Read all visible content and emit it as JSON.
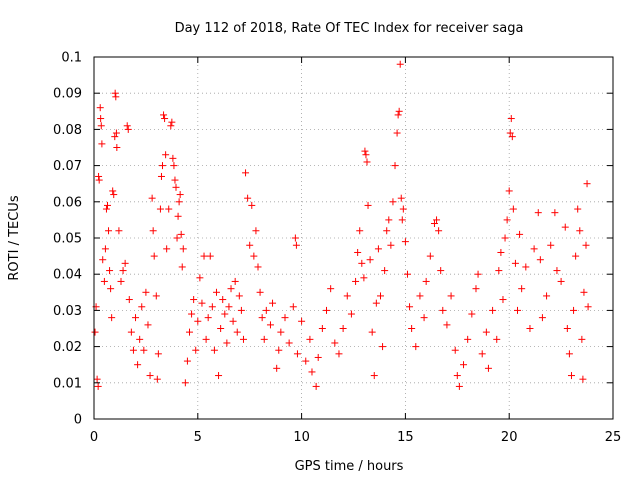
{
  "chart_data": {
    "type": "scatter",
    "title": "Day 112 of 2018, Rate Of TEC Index for receiver saga",
    "xlabel": "GPS time / hours",
    "ylabel": "ROTI / TECUs",
    "xlim": [
      0,
      25
    ],
    "ylim": [
      0,
      0.1
    ],
    "x_ticks": [
      "0",
      "5",
      "10",
      "15",
      "20",
      "25"
    ],
    "y_ticks": [
      "0",
      "0.01",
      "0.02",
      "0.03",
      "0.04",
      "0.05",
      "0.06",
      "0.07",
      "0.08",
      "0.09",
      "0.1"
    ],
    "grid": true,
    "marker": "+",
    "series": [
      {
        "color": "#ff0000",
        "points": [
          [
            0.05,
            0.024
          ],
          [
            0.1,
            0.031
          ],
          [
            0.15,
            0.011
          ],
          [
            0.2,
            0.009
          ],
          [
            0.22,
            0.067
          ],
          [
            0.25,
            0.066
          ],
          [
            0.3,
            0.086
          ],
          [
            0.32,
            0.083
          ],
          [
            0.35,
            0.081
          ],
          [
            0.38,
            0.076
          ],
          [
            0.42,
            0.044
          ],
          [
            0.5,
            0.038
          ],
          [
            0.55,
            0.047
          ],
          [
            0.6,
            0.058
          ],
          [
            0.65,
            0.059
          ],
          [
            0.7,
            0.052
          ],
          [
            0.75,
            0.041
          ],
          [
            0.8,
            0.036
          ],
          [
            0.85,
            0.028
          ],
          [
            0.9,
            0.063
          ],
          [
            0.95,
            0.062
          ],
          [
            1.0,
            0.078
          ],
          [
            1.02,
            0.09
          ],
          [
            1.05,
            0.089
          ],
          [
            1.08,
            0.079
          ],
          [
            1.1,
            0.075
          ],
          [
            1.2,
            0.052
          ],
          [
            1.3,
            0.038
          ],
          [
            1.4,
            0.041
          ],
          [
            1.5,
            0.043
          ],
          [
            1.6,
            0.081
          ],
          [
            1.65,
            0.08
          ],
          [
            1.7,
            0.033
          ],
          [
            1.8,
            0.024
          ],
          [
            1.9,
            0.019
          ],
          [
            2.0,
            0.028
          ],
          [
            2.1,
            0.015
          ],
          [
            2.2,
            0.022
          ],
          [
            2.3,
            0.031
          ],
          [
            2.4,
            0.019
          ],
          [
            2.5,
            0.035
          ],
          [
            2.6,
            0.026
          ],
          [
            2.7,
            0.012
          ],
          [
            2.8,
            0.061
          ],
          [
            2.85,
            0.052
          ],
          [
            2.9,
            0.045
          ],
          [
            3.0,
            0.034
          ],
          [
            3.05,
            0.011
          ],
          [
            3.1,
            0.018
          ],
          [
            3.2,
            0.058
          ],
          [
            3.25,
            0.067
          ],
          [
            3.3,
            0.07
          ],
          [
            3.35,
            0.084
          ],
          [
            3.4,
            0.083
          ],
          [
            3.45,
            0.073
          ],
          [
            3.5,
            0.047
          ],
          [
            3.6,
            0.058
          ],
          [
            3.7,
            0.081
          ],
          [
            3.75,
            0.082
          ],
          [
            3.8,
            0.072
          ],
          [
            3.85,
            0.07
          ],
          [
            3.9,
            0.066
          ],
          [
            3.95,
            0.064
          ],
          [
            4.0,
            0.05
          ],
          [
            4.05,
            0.056
          ],
          [
            4.1,
            0.06
          ],
          [
            4.15,
            0.062
          ],
          [
            4.2,
            0.051
          ],
          [
            4.25,
            0.042
          ],
          [
            4.3,
            0.047
          ],
          [
            4.4,
            0.01
          ],
          [
            4.5,
            0.016
          ],
          [
            4.6,
            0.024
          ],
          [
            4.7,
            0.029
          ],
          [
            4.8,
            0.033
          ],
          [
            4.9,
            0.019
          ],
          [
            5.0,
            0.027
          ],
          [
            5.1,
            0.039
          ],
          [
            5.2,
            0.032
          ],
          [
            5.3,
            0.045
          ],
          [
            5.4,
            0.022
          ],
          [
            5.5,
            0.028
          ],
          [
            5.6,
            0.045
          ],
          [
            5.7,
            0.031
          ],
          [
            5.8,
            0.019
          ],
          [
            5.9,
            0.035
          ],
          [
            6.0,
            0.012
          ],
          [
            6.1,
            0.025
          ],
          [
            6.2,
            0.033
          ],
          [
            6.3,
            0.029
          ],
          [
            6.4,
            0.021
          ],
          [
            6.5,
            0.031
          ],
          [
            6.6,
            0.036
          ],
          [
            6.7,
            0.027
          ],
          [
            6.8,
            0.038
          ],
          [
            6.9,
            0.024
          ],
          [
            7.0,
            0.034
          ],
          [
            7.1,
            0.03
          ],
          [
            7.2,
            0.022
          ],
          [
            7.3,
            0.068
          ],
          [
            7.4,
            0.061
          ],
          [
            7.5,
            0.048
          ],
          [
            7.6,
            0.059
          ],
          [
            7.7,
            0.045
          ],
          [
            7.8,
            0.052
          ],
          [
            7.9,
            0.042
          ],
          [
            8.0,
            0.035
          ],
          [
            8.1,
            0.028
          ],
          [
            8.2,
            0.022
          ],
          [
            8.3,
            0.03
          ],
          [
            8.5,
            0.026
          ],
          [
            8.6,
            0.032
          ],
          [
            8.8,
            0.014
          ],
          [
            8.9,
            0.019
          ],
          [
            9.0,
            0.024
          ],
          [
            9.2,
            0.028
          ],
          [
            9.4,
            0.021
          ],
          [
            9.6,
            0.031
          ],
          [
            9.7,
            0.05
          ],
          [
            9.75,
            0.048
          ],
          [
            9.8,
            0.018
          ],
          [
            10.0,
            0.027
          ],
          [
            10.2,
            0.016
          ],
          [
            10.4,
            0.022
          ],
          [
            10.5,
            0.013
          ],
          [
            10.7,
            0.009
          ],
          [
            10.8,
            0.017
          ],
          [
            11.0,
            0.025
          ],
          [
            11.2,
            0.03
          ],
          [
            11.4,
            0.036
          ],
          [
            11.6,
            0.021
          ],
          [
            11.8,
            0.018
          ],
          [
            12.0,
            0.025
          ],
          [
            12.2,
            0.034
          ],
          [
            12.4,
            0.029
          ],
          [
            12.6,
            0.038
          ],
          [
            12.7,
            0.046
          ],
          [
            12.8,
            0.052
          ],
          [
            12.9,
            0.043
          ],
          [
            13.0,
            0.039
          ],
          [
            13.05,
            0.074
          ],
          [
            13.1,
            0.073
          ],
          [
            13.15,
            0.071
          ],
          [
            13.2,
            0.059
          ],
          [
            13.3,
            0.044
          ],
          [
            13.4,
            0.024
          ],
          [
            13.5,
            0.012
          ],
          [
            13.6,
            0.032
          ],
          [
            13.7,
            0.047
          ],
          [
            13.8,
            0.034
          ],
          [
            13.9,
            0.02
          ],
          [
            14.0,
            0.041
          ],
          [
            14.1,
            0.052
          ],
          [
            14.2,
            0.055
          ],
          [
            14.3,
            0.048
          ],
          [
            14.4,
            0.06
          ],
          [
            14.5,
            0.07
          ],
          [
            14.6,
            0.079
          ],
          [
            14.65,
            0.084
          ],
          [
            14.7,
            0.085
          ],
          [
            14.75,
            0.098
          ],
          [
            14.8,
            0.061
          ],
          [
            14.85,
            0.055
          ],
          [
            14.9,
            0.058
          ],
          [
            15.0,
            0.049
          ],
          [
            15.1,
            0.04
          ],
          [
            15.2,
            0.031
          ],
          [
            15.3,
            0.025
          ],
          [
            15.5,
            0.02
          ],
          [
            15.7,
            0.034
          ],
          [
            15.9,
            0.028
          ],
          [
            16.0,
            0.038
          ],
          [
            16.2,
            0.045
          ],
          [
            16.4,
            0.054
          ],
          [
            16.5,
            0.055
          ],
          [
            16.6,
            0.052
          ],
          [
            16.7,
            0.041
          ],
          [
            16.8,
            0.03
          ],
          [
            17.0,
            0.026
          ],
          [
            17.2,
            0.034
          ],
          [
            17.4,
            0.019
          ],
          [
            17.5,
            0.012
          ],
          [
            17.6,
            0.009
          ],
          [
            17.8,
            0.015
          ],
          [
            18.0,
            0.022
          ],
          [
            18.2,
            0.029
          ],
          [
            18.4,
            0.036
          ],
          [
            18.5,
            0.04
          ],
          [
            18.7,
            0.018
          ],
          [
            18.9,
            0.024
          ],
          [
            19.0,
            0.014
          ],
          [
            19.2,
            0.03
          ],
          [
            19.4,
            0.022
          ],
          [
            19.5,
            0.041
          ],
          [
            19.6,
            0.046
          ],
          [
            19.7,
            0.033
          ],
          [
            19.8,
            0.05
          ],
          [
            19.9,
            0.055
          ],
          [
            20.0,
            0.063
          ],
          [
            20.05,
            0.079
          ],
          [
            20.1,
            0.083
          ],
          [
            20.15,
            0.078
          ],
          [
            20.2,
            0.058
          ],
          [
            20.3,
            0.043
          ],
          [
            20.4,
            0.03
          ],
          [
            20.5,
            0.051
          ],
          [
            20.6,
            0.036
          ],
          [
            20.8,
            0.042
          ],
          [
            21.0,
            0.025
          ],
          [
            21.2,
            0.047
          ],
          [
            21.4,
            0.057
          ],
          [
            21.5,
            0.044
          ],
          [
            21.6,
            0.028
          ],
          [
            21.8,
            0.034
          ],
          [
            22.0,
            0.048
          ],
          [
            22.2,
            0.057
          ],
          [
            22.3,
            0.041
          ],
          [
            22.5,
            0.038
          ],
          [
            22.7,
            0.053
          ],
          [
            22.8,
            0.025
          ],
          [
            22.9,
            0.018
          ],
          [
            23.0,
            0.012
          ],
          [
            23.1,
            0.03
          ],
          [
            23.2,
            0.045
          ],
          [
            23.3,
            0.058
          ],
          [
            23.4,
            0.052
          ],
          [
            23.5,
            0.022
          ],
          [
            23.55,
            0.011
          ],
          [
            23.6,
            0.035
          ],
          [
            23.7,
            0.048
          ],
          [
            23.75,
            0.065
          ],
          [
            23.8,
            0.031
          ]
        ]
      }
    ]
  }
}
